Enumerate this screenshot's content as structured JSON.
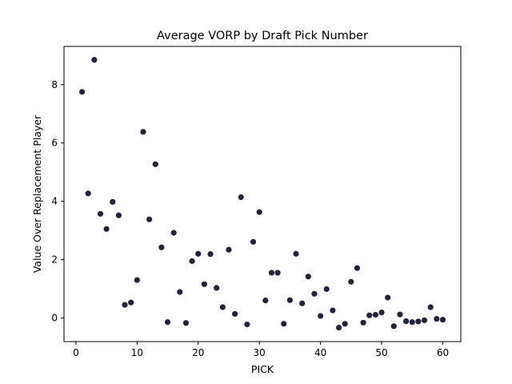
{
  "chart_data": {
    "type": "scatter",
    "title": "Average VORP by Draft Pick Number",
    "xlabel": "PICK",
    "ylabel": "Value Over Replacement Player",
    "xlim": [
      -1.95,
      62.95
    ],
    "ylim": [
      -0.81,
      9.31
    ],
    "xticks": [
      0,
      10,
      20,
      30,
      40,
      50,
      60
    ],
    "yticks": [
      0,
      2,
      4,
      6,
      8
    ],
    "grid": false,
    "legend": "none",
    "marker_color": "#23233a",
    "x": [
      1,
      2,
      3,
      4,
      5,
      6,
      7,
      8,
      9,
      10,
      11,
      12,
      13,
      14,
      15,
      16,
      17,
      18,
      19,
      20,
      21,
      22,
      23,
      24,
      25,
      26,
      27,
      28,
      29,
      30,
      31,
      32,
      33,
      34,
      35,
      36,
      37,
      38,
      39,
      40,
      41,
      42,
      43,
      44,
      45,
      46,
      47,
      48,
      49,
      50,
      51,
      52,
      53,
      54,
      55,
      56,
      57,
      58,
      59,
      60
    ],
    "y": [
      7.75,
      4.27,
      8.85,
      3.57,
      3.05,
      3.98,
      3.52,
      0.45,
      0.53,
      1.3,
      6.38,
      3.38,
      5.27,
      2.42,
      -0.14,
      2.92,
      0.89,
      -0.17,
      1.95,
      2.2,
      1.16,
      2.19,
      1.03,
      0.37,
      2.34,
      0.14,
      4.14,
      -0.22,
      2.61,
      3.63,
      0.6,
      1.55,
      1.55,
      -0.2,
      0.61,
      2.2,
      0.5,
      1.42,
      0.83,
      0.07,
      0.99,
      0.26,
      -0.33,
      -0.2,
      1.24,
      1.71,
      -0.16,
      0.09,
      0.11,
      0.19,
      0.7,
      -0.28,
      0.12,
      -0.11,
      -0.14,
      -0.12,
      -0.08,
      0.37,
      -0.03,
      -0.06
    ]
  }
}
